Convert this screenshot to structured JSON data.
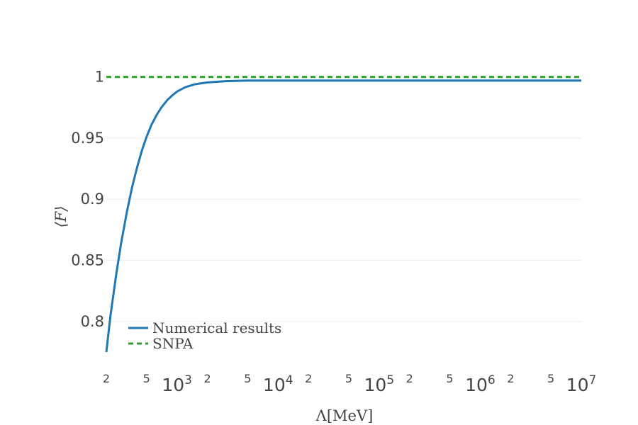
{
  "chart_data": {
    "type": "line",
    "title": "",
    "xlabel": "Λ[MeV]",
    "ylabel": "⟨F⟩",
    "x_scale": "log",
    "xlim": [
      200,
      10000000
    ],
    "ylim": [
      0.775,
      1.005
    ],
    "grid": true,
    "legend_position": "bottom-left",
    "x_major_ticks": [
      {
        "value": 1000,
        "base": "10",
        "exp": "3"
      },
      {
        "value": 10000,
        "base": "10",
        "exp": "4"
      },
      {
        "value": 100000,
        "base": "10",
        "exp": "5"
      },
      {
        "value": 1000000,
        "base": "10",
        "exp": "6"
      },
      {
        "value": 10000000,
        "base": "10",
        "exp": "7"
      }
    ],
    "x_minor_ticks": [
      {
        "value": 200,
        "label": "2"
      },
      {
        "value": 500,
        "label": "5"
      },
      {
        "value": 2000,
        "label": "2"
      },
      {
        "value": 5000,
        "label": "5"
      },
      {
        "value": 20000,
        "label": "2"
      },
      {
        "value": 50000,
        "label": "5"
      },
      {
        "value": 200000,
        "label": "2"
      },
      {
        "value": 500000,
        "label": "5"
      },
      {
        "value": 2000000,
        "label": "2"
      },
      {
        "value": 5000000,
        "label": "5"
      }
    ],
    "y_ticks": [
      {
        "value": 0.8,
        "label": "0.8"
      },
      {
        "value": 0.85,
        "label": "0.85"
      },
      {
        "value": 0.9,
        "label": "0.9"
      },
      {
        "value": 0.95,
        "label": "0.95"
      },
      {
        "value": 1.0,
        "label": "1"
      }
    ],
    "series": [
      {
        "name": "Numerical results",
        "color": "#1f77b4",
        "dash": "solid",
        "x": [
          200,
          220,
          250,
          280,
          320,
          360,
          400,
          450,
          500,
          560,
          630,
          700,
          800,
          900,
          1000,
          1200,
          1500,
          2000,
          3000,
          5000,
          10000,
          100000,
          1000000,
          10000000
        ],
        "y": [
          0.775,
          0.805,
          0.838,
          0.864,
          0.89,
          0.91,
          0.925,
          0.94,
          0.951,
          0.961,
          0.969,
          0.975,
          0.981,
          0.985,
          0.988,
          0.9915,
          0.994,
          0.9955,
          0.9965,
          0.997,
          0.997,
          0.997,
          0.997,
          0.997
        ]
      },
      {
        "name": "SNPA",
        "color": "#2ca02c",
        "dash": "dashed",
        "x": [
          200,
          10000000
        ],
        "y": [
          1.0,
          1.0
        ]
      }
    ]
  }
}
